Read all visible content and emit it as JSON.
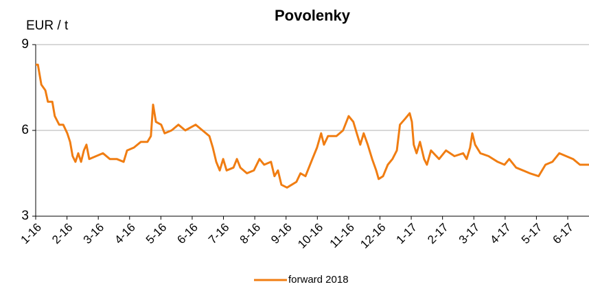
{
  "chart_data": {
    "type": "line",
    "title": "Povolenky",
    "y_label": "EUR / t",
    "x": [
      0,
      0.07,
      0.18,
      0.31,
      0.39,
      0.53,
      0.61,
      0.75,
      0.88,
      1.01,
      1.1,
      1.18,
      1.27,
      1.36,
      1.45,
      1.54,
      1.62,
      1.71,
      1.93,
      2.15,
      2.37,
      2.59,
      2.81,
      2.92,
      3.14,
      3.36,
      3.57,
      3.68,
      3.75,
      3.84,
      4.01,
      4.12,
      4.34,
      4.56,
      4.78,
      5.11,
      5.33,
      5.55,
      5.66,
      5.77,
      5.88,
      5.99,
      6.1,
      6.32,
      6.43,
      6.54,
      6.75,
      6.97,
      7.15,
      7.3,
      7.52,
      7.63,
      7.74,
      7.85,
      8.03,
      8.18,
      8.33,
      8.46,
      8.62,
      8.84,
      8.99,
      9.12,
      9.21,
      9.34,
      9.61,
      9.82,
      10.0,
      10.15,
      10.26,
      10.37,
      10.48,
      10.61,
      10.75,
      10.88,
      10.96,
      11.1,
      11.25,
      11.4,
      11.54,
      11.64,
      11.8,
      11.95,
      12.02,
      12.08,
      12.17,
      12.28,
      12.41,
      12.5,
      12.63,
      12.89,
      13.11,
      13.38,
      13.66,
      13.77,
      13.88,
      13.95,
      14.04,
      14.21,
      14.47,
      14.76,
      14.98,
      15.13,
      15.35,
      15.57,
      15.79,
      16.07,
      16.29,
      16.51,
      16.73,
      16.95,
      17.17,
      17.39,
      17.68
    ],
    "series": [
      {
        "name": "forward 2018",
        "color": "#f07d12",
        "values": [
          8.3,
          8.3,
          7.6,
          7.4,
          7.0,
          7.0,
          6.5,
          6.2,
          6.2,
          5.9,
          5.6,
          5.1,
          4.9,
          5.2,
          4.9,
          5.3,
          5.5,
          5.0,
          5.1,
          5.2,
          5.0,
          5.0,
          4.9,
          5.3,
          5.4,
          5.6,
          5.6,
          5.8,
          6.9,
          6.3,
          6.2,
          5.9,
          6.0,
          6.2,
          6.0,
          6.2,
          6.0,
          5.8,
          5.4,
          4.9,
          4.6,
          5.0,
          4.6,
          4.7,
          5.0,
          4.7,
          4.5,
          4.6,
          5.0,
          4.8,
          4.9,
          4.4,
          4.6,
          4.1,
          4.0,
          4.1,
          4.2,
          4.5,
          4.4,
          5.0,
          5.4,
          5.9,
          5.5,
          5.8,
          5.8,
          6.0,
          6.5,
          6.3,
          5.9,
          5.5,
          5.9,
          5.5,
          5.0,
          4.6,
          4.3,
          4.4,
          4.8,
          5.0,
          5.3,
          6.2,
          6.4,
          6.6,
          6.3,
          5.5,
          5.2,
          5.6,
          5.0,
          4.8,
          5.3,
          5.0,
          5.3,
          5.1,
          5.2,
          5.0,
          5.4,
          5.9,
          5.5,
          5.2,
          5.1,
          4.9,
          4.8,
          5.0,
          4.7,
          4.6,
          4.5,
          4.4,
          4.8,
          4.9,
          5.2,
          5.1,
          5.0,
          4.8,
          4.8
        ]
      }
    ],
    "xlim": [
      0,
      17.68
    ],
    "xticks": [
      {
        "value": 0,
        "label": "1-16"
      },
      {
        "value": 1,
        "label": "2-16"
      },
      {
        "value": 2,
        "label": "3-16"
      },
      {
        "value": 3,
        "label": "4-16"
      },
      {
        "value": 4,
        "label": "5-16"
      },
      {
        "value": 5,
        "label": "6-16"
      },
      {
        "value": 6,
        "label": "7-16"
      },
      {
        "value": 7,
        "label": "8-16"
      },
      {
        "value": 8,
        "label": "9-16"
      },
      {
        "value": 9,
        "label": "10-16"
      },
      {
        "value": 10,
        "label": "11-16"
      },
      {
        "value": 11,
        "label": "12-16"
      },
      {
        "value": 12,
        "label": "1-17"
      },
      {
        "value": 13,
        "label": "2-17"
      },
      {
        "value": 14,
        "label": "3-17"
      },
      {
        "value": 15,
        "label": "4-17"
      },
      {
        "value": 16,
        "label": "5-17"
      },
      {
        "value": 17,
        "label": "6-17"
      }
    ],
    "ylim": [
      3,
      9
    ],
    "yticks": [
      3,
      6,
      9
    ],
    "grid": true
  }
}
